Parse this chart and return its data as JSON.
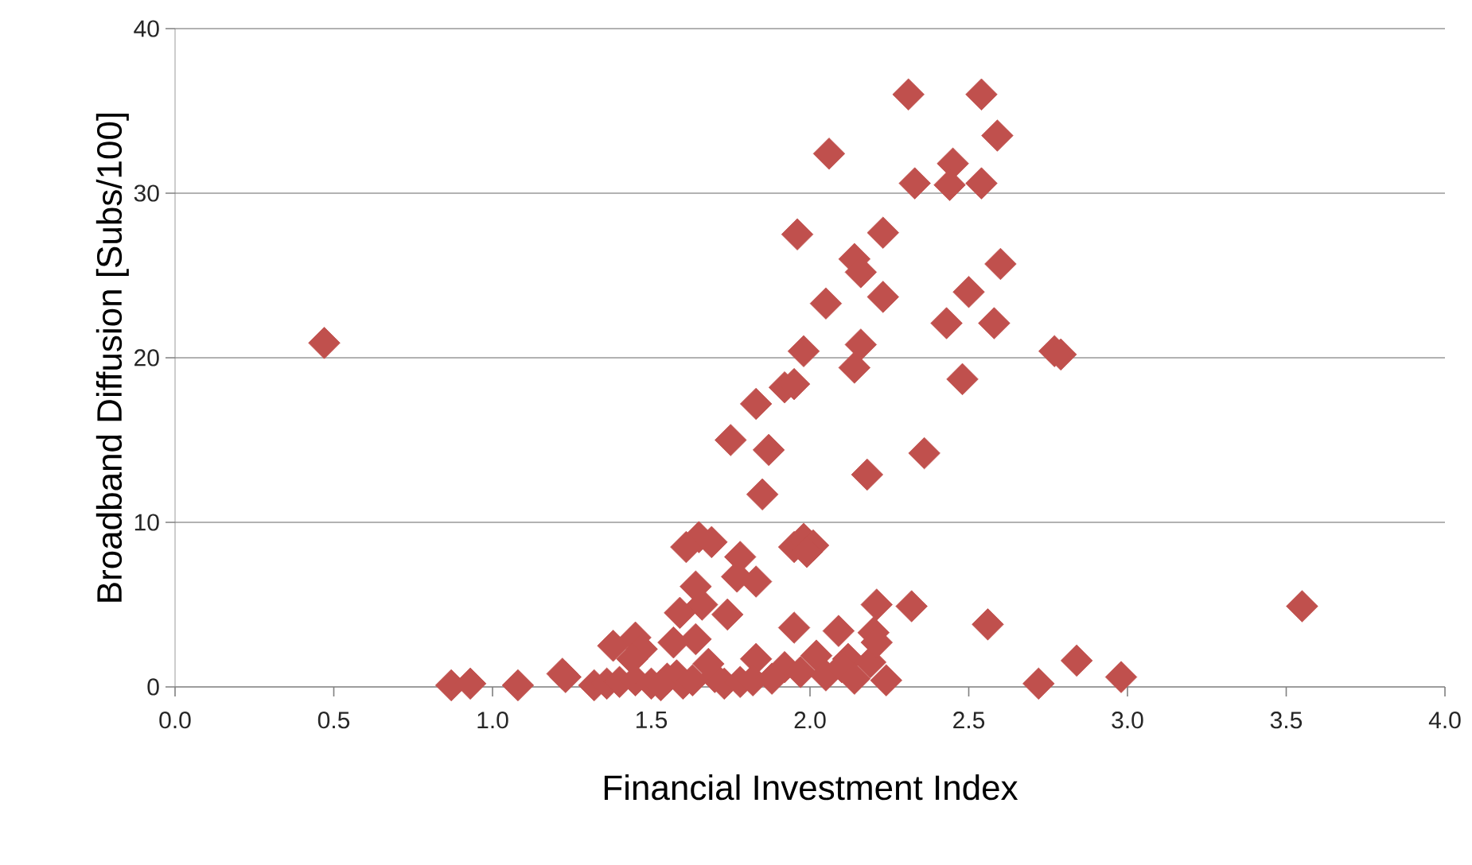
{
  "chart_data": {
    "type": "scatter",
    "xlabel": "Financial Investment Index",
    "ylabel": "Broadband Diffusion [Subs/100]",
    "x": [
      0.47,
      2.31,
      2.54,
      2.59,
      2.06,
      2.45,
      2.33,
      2.44,
      2.54,
      1.96,
      2.23,
      2.6,
      2.14,
      2.16,
      2.5,
      2.05,
      2.23,
      2.43,
      2.58,
      2.77,
      2.79,
      1.98,
      2.16,
      2.14,
      2.48,
      1.92,
      1.95,
      1.83,
      1.75,
      1.87,
      2.36,
      2.18,
      1.85,
      1.65,
      1.61,
      1.69,
      1.95,
      1.98,
      2.01,
      1.99,
      1.78,
      1.77,
      1.83,
      1.64,
      1.66,
      1.59,
      1.74,
      2.21,
      2.32,
      3.55,
      2.56,
      1.95,
      2.09,
      2.2,
      1.64,
      1.57,
      1.38,
      1.45,
      1.47,
      1.44,
      1.83,
      1.92,
      2.02,
      2.12,
      2.19,
      2.21,
      2.84,
      0.87,
      0.93,
      1.08,
      1.22,
      1.23,
      1.32,
      1.36,
      1.4,
      1.45,
      1.5,
      1.55,
      1.58,
      1.6,
      1.63,
      1.7,
      1.73,
      1.78,
      1.82,
      1.88,
      1.97,
      2.05,
      2.1,
      2.14,
      2.24,
      2.72,
      2.98,
      1.53,
      1.68
    ],
    "values": [
      20.9,
      36.0,
      36.0,
      33.5,
      32.4,
      31.8,
      30.6,
      30.5,
      30.6,
      27.5,
      27.6,
      25.7,
      26.0,
      25.2,
      24.0,
      23.3,
      23.7,
      22.1,
      22.1,
      20.4,
      20.2,
      20.4,
      20.8,
      19.4,
      18.7,
      18.2,
      18.4,
      17.2,
      15.0,
      14.4,
      14.2,
      12.9,
      11.7,
      9.1,
      8.5,
      8.8,
      8.5,
      9.0,
      8.6,
      8.2,
      7.9,
      6.7,
      6.4,
      6.1,
      5.0,
      4.5,
      4.4,
      5.0,
      4.9,
      4.9,
      3.8,
      3.6,
      3.4,
      3.3,
      2.9,
      2.7,
      2.5,
      3.0,
      2.3,
      1.7,
      1.7,
      1.2,
      1.9,
      1.7,
      1.5,
      2.7,
      1.6,
      0.1,
      0.2,
      0.1,
      0.8,
      0.6,
      0.1,
      0.2,
      0.3,
      0.4,
      0.2,
      0.5,
      0.7,
      0.2,
      0.4,
      0.6,
      0.2,
      0.3,
      0.4,
      0.5,
      0.9,
      0.7,
      1.2,
      0.5,
      0.4,
      0.2,
      0.6,
      0.1,
      1.4
    ],
    "color": "#c0504d",
    "marker": "diamond",
    "grid": "y",
    "xlim": [
      0,
      4
    ],
    "ylim": [
      0,
      40
    ],
    "xticks": [
      {
        "value": 0,
        "label": "0.0"
      },
      {
        "value": 0.5,
        "label": "0.5"
      },
      {
        "value": 1,
        "label": "1.0"
      },
      {
        "value": 1.5,
        "label": "1.5"
      },
      {
        "value": 2,
        "label": "2.0"
      },
      {
        "value": 2.5,
        "label": "2.5"
      },
      {
        "value": 3,
        "label": "3.0"
      },
      {
        "value": 3.5,
        "label": "3.5"
      },
      {
        "value": 4,
        "label": "4.0"
      }
    ],
    "yticks": [
      0,
      10,
      20,
      30,
      40
    ]
  }
}
